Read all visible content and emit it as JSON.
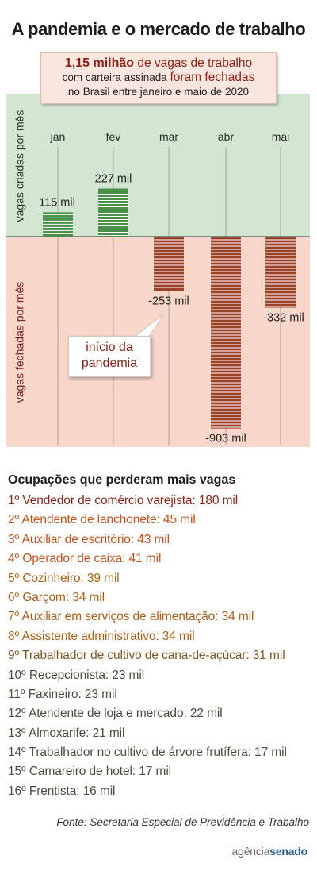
{
  "header": {
    "title": "A pandemia e o mercado de trabalho"
  },
  "callout": {
    "line1_bold": "1,15 milhão",
    "line1_rest": " de vagas de trabalho",
    "line2_a": "com carteira assinada ",
    "line2_b": "foram fechadas",
    "line3": "no Brasil entre janeiro e maio de 2020"
  },
  "side_labels": {
    "top": "vagas criadas por mês",
    "bottom": "vagas fechadas por mês"
  },
  "chart_data": {
    "type": "bar",
    "categories": [
      "jan",
      "fev",
      "mar",
      "abr",
      "mai"
    ],
    "values": [
      115,
      227,
      -253,
      -903,
      -332
    ],
    "value_labels": [
      "115 mil",
      "227 mil",
      "-253 mil",
      "-903 mil",
      "-332 mil"
    ],
    "unit": "mil",
    "grid": "vertical",
    "colors": {
      "positive": "#4d8e4b",
      "negative": "#9c4028",
      "positive_bg": "#d3e6d2",
      "negative_bg": "#f8d6ca"
    }
  },
  "annotation": {
    "line1": "início da",
    "line2": "pandemia"
  },
  "occupations": {
    "title": "Ocupações que perderam mais vagas",
    "items": [
      {
        "rank": "1º",
        "label": "Vendedor de comércio varejista: 180 mil",
        "color": "#8b2418"
      },
      {
        "rank": "2º",
        "label": "Atendente de lanchonete: 45 mil",
        "color": "#c0531e"
      },
      {
        "rank": "3º",
        "label": "Auxiliar de escritório: 43 mil",
        "color": "#c0531e"
      },
      {
        "rank": "4º",
        "label": "Operador de caixa: 41 mil",
        "color": "#c0531e"
      },
      {
        "rank": "5º",
        "label": "Cozinheiro: 39 mil",
        "color": "#a9621b"
      },
      {
        "rank": "6º",
        "label": "Garçom: 34 mil",
        "color": "#a9621b"
      },
      {
        "rank": "7º",
        "label": "Auxiliar em serviços de alimentação: 34 mil",
        "color": "#a9621b"
      },
      {
        "rank": "8º",
        "label": "Assistente administrativo: 34 mil",
        "color": "#a9621b"
      },
      {
        "rank": "9º",
        "label": "Trabalhador de cultivo de cana-de-açúcar: 31 mil",
        "color": "#7d5526"
      },
      {
        "rank": "10º",
        "label": "Recepcionista: 23 mil",
        "color": "#4f4a3f"
      },
      {
        "rank": "11º",
        "label": "Faxineiro: 23 mil",
        "color": "#4f4a3f"
      },
      {
        "rank": "12º",
        "label": "Atendente de loja e mercado: 22 mil",
        "color": "#4f4a3f"
      },
      {
        "rank": "13º",
        "label": "Almoxarife: 21 mil",
        "color": "#4f4a3f"
      },
      {
        "rank": "14º",
        "label": "Trabalhador no cultivo de árvore frutífera: 17 mil",
        "color": "#4f4a3f"
      },
      {
        "rank": "15º",
        "label": "Camareiro de hotel: 17 mil",
        "color": "#4f4a3f"
      },
      {
        "rank": "16º",
        "label": "Frentista: 16 mil",
        "color": "#4f4a3f"
      }
    ]
  },
  "source": "Fonte: Secretaria Especial de Previdência e Trabalho",
  "logo": {
    "part1": "agência",
    "part2": "senado"
  }
}
